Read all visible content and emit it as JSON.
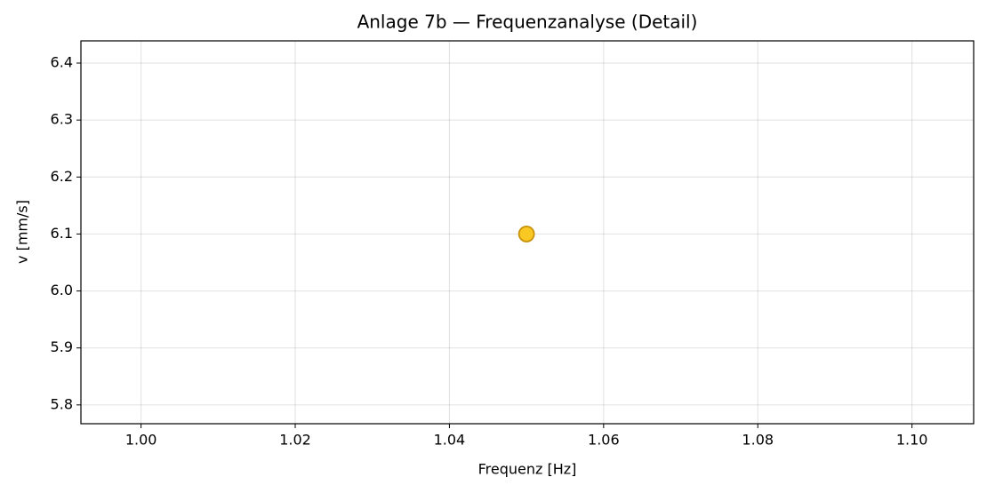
{
  "chart_data": {
    "type": "scatter",
    "title": "Anlage 7b — Frequenzanalyse (Detail)",
    "x_label": "Frequenz [Hz]",
    "y_label": "v [mm/s]",
    "x": [
      1.05
    ],
    "values": [
      6.1
    ],
    "color": "#f9c823",
    "edge_color": "#c8930a",
    "xlim": [
      0.9922,
      1.108
    ],
    "ylim": [
      5.767,
      6.439
    ],
    "xticks": [
      {
        "value": 1,
        "label": "1.00"
      },
      {
        "value": 1.02,
        "label": "1.02"
      },
      {
        "value": 1.04,
        "label": "1.04"
      },
      {
        "value": 1.06,
        "label": "1.06"
      },
      {
        "value": 1.08,
        "label": "1.08"
      },
      {
        "value": 1.1,
        "label": "1.10"
      }
    ],
    "yticks": [
      5.8,
      5.9,
      {
        "value": 6,
        "label": "6.0"
      },
      6.1,
      6.2,
      6.3,
      6.4
    ],
    "grid": true
  }
}
